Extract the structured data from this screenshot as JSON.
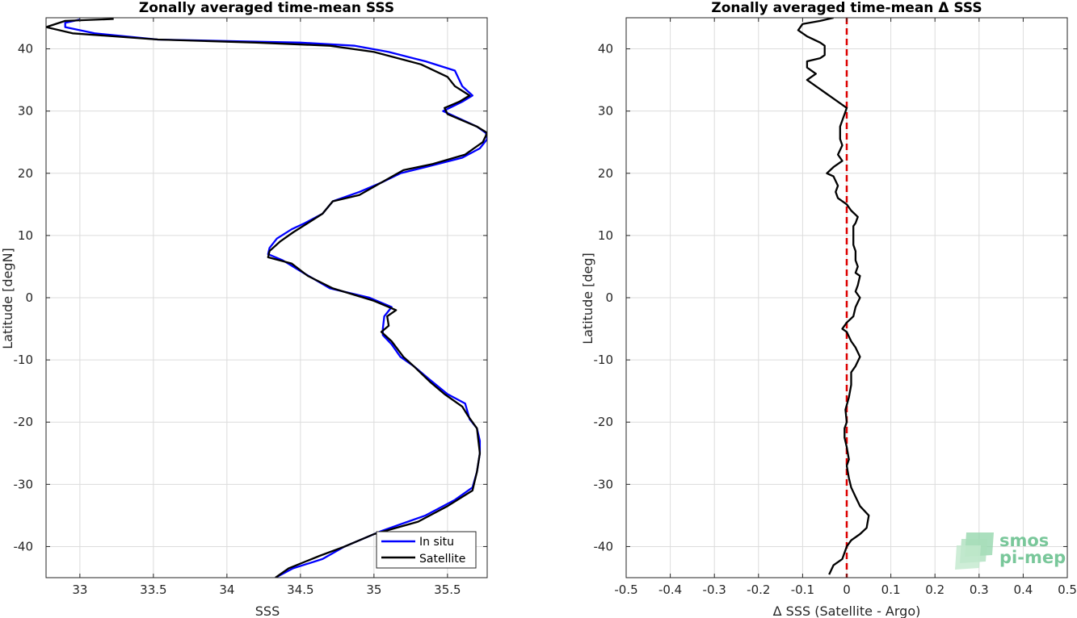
{
  "chart_data": [
    {
      "type": "line",
      "title": "Zonally averaged time-mean SSS",
      "xlabel": "SSS",
      "ylabel": "Latitude [degN]",
      "xlim": [
        32.77,
        35.77
      ],
      "ylim": [
        -45,
        45
      ],
      "xticks": [
        "33",
        "33.5",
        "34",
        "34.5",
        "35",
        "35.5"
      ],
      "xtick_values": [
        33,
        33.5,
        34,
        34.5,
        35,
        35.5
      ],
      "yticks": [
        "-40",
        "-30",
        "-20",
        "-10",
        "0",
        "10",
        "20",
        "30",
        "40"
      ],
      "ytick_values": [
        -40,
        -30,
        -20,
        -10,
        0,
        10,
        20,
        30,
        40
      ],
      "grid": true,
      "legend": "bottom-right",
      "series": [
        {
          "name": "In situ",
          "color": "#0000ff",
          "points": [
            [
              34.33,
              -45
            ],
            [
              34.45,
              -43.5
            ],
            [
              34.65,
              -42
            ],
            [
              34.8,
              -40
            ],
            [
              35.05,
              -37.5
            ],
            [
              35.35,
              -35
            ],
            [
              35.55,
              -32.5
            ],
            [
              35.67,
              -30.5
            ],
            [
              35.7,
              -28
            ],
            [
              35.72,
              -25
            ],
            [
              35.72,
              -23
            ],
            [
              35.7,
              -21
            ],
            [
              35.65,
              -19.5
            ],
            [
              35.62,
              -17
            ],
            [
              35.5,
              -15.5
            ],
            [
              35.37,
              -13
            ],
            [
              35.27,
              -11
            ],
            [
              35.18,
              -9.5
            ],
            [
              35.12,
              -7.5
            ],
            [
              35.06,
              -6
            ],
            [
              35.06,
              -5
            ],
            [
              35.07,
              -3
            ],
            [
              35.12,
              -1.5
            ],
            [
              34.97,
              0
            ],
            [
              34.7,
              1.5
            ],
            [
              34.52,
              4
            ],
            [
              34.38,
              6
            ],
            [
              34.28,
              7
            ],
            [
              34.29,
              8
            ],
            [
              34.34,
              9.5
            ],
            [
              34.44,
              11
            ],
            [
              34.53,
              12
            ],
            [
              34.65,
              13.5
            ],
            [
              34.72,
              15.5
            ],
            [
              34.9,
              17
            ],
            [
              35.05,
              18.5
            ],
            [
              35.18,
              20
            ],
            [
              35.35,
              21
            ],
            [
              35.6,
              22.5
            ],
            [
              35.72,
              24
            ],
            [
              35.77,
              25.5
            ],
            [
              35.76,
              26.5
            ],
            [
              35.7,
              27.5
            ],
            [
              35.47,
              30
            ],
            [
              35.6,
              31.5
            ],
            [
              35.67,
              32.5
            ],
            [
              35.6,
              34
            ],
            [
              35.55,
              36.5
            ],
            [
              35.35,
              38
            ],
            [
              35.1,
              39.5
            ],
            [
              34.87,
              40.5
            ],
            [
              34.5,
              41
            ],
            [
              34.1,
              41.2
            ],
            [
              33.53,
              41.5
            ],
            [
              33.1,
              42.5
            ],
            [
              32.9,
              43.5
            ],
            [
              32.9,
              44.2
            ],
            [
              33.0,
              44.7
            ]
          ]
        },
        {
          "name": "Satellite",
          "color": "#000000",
          "points": [
            [
              34.33,
              -45
            ],
            [
              34.42,
              -43.5
            ],
            [
              34.63,
              -41.5
            ],
            [
              34.8,
              -40
            ],
            [
              35.0,
              -38
            ],
            [
              35.3,
              -36
            ],
            [
              35.5,
              -33.5
            ],
            [
              35.67,
              -31
            ],
            [
              35.7,
              -28
            ],
            [
              35.72,
              -25
            ],
            [
              35.71,
              -23
            ],
            [
              35.7,
              -21
            ],
            [
              35.64,
              -19
            ],
            [
              35.6,
              -17.5
            ],
            [
              35.48,
              -15.5
            ],
            [
              35.38,
              -13.5
            ],
            [
              35.27,
              -11
            ],
            [
              35.2,
              -9.5
            ],
            [
              35.12,
              -7
            ],
            [
              35.05,
              -5.5
            ],
            [
              35.1,
              -4.5
            ],
            [
              35.09,
              -3
            ],
            [
              35.15,
              -2
            ],
            [
              35.0,
              -0.5
            ],
            [
              34.72,
              1.5
            ],
            [
              34.55,
              3.5
            ],
            [
              34.44,
              5.5
            ],
            [
              34.28,
              6.5
            ],
            [
              34.29,
              7.5
            ],
            [
              34.36,
              9
            ],
            [
              34.45,
              10.5
            ],
            [
              34.55,
              12
            ],
            [
              34.65,
              13.5
            ],
            [
              34.72,
              15.5
            ],
            [
              34.9,
              16.5
            ],
            [
              35.05,
              18.5
            ],
            [
              35.2,
              20.5
            ],
            [
              35.4,
              21.5
            ],
            [
              35.62,
              23
            ],
            [
              35.74,
              25
            ],
            [
              35.77,
              26.5
            ],
            [
              35.7,
              27.5
            ],
            [
              35.5,
              29.5
            ],
            [
              35.48,
              30.5
            ],
            [
              35.58,
              31.5
            ],
            [
              35.65,
              32.5
            ],
            [
              35.55,
              34
            ],
            [
              35.5,
              35.5
            ],
            [
              35.32,
              37.5
            ],
            [
              35.0,
              39.5
            ],
            [
              34.7,
              40.5
            ],
            [
              34.2,
              41
            ],
            [
              33.53,
              41.5
            ],
            [
              32.95,
              42.5
            ],
            [
              32.77,
              43.5
            ],
            [
              32.9,
              44.5
            ],
            [
              33.23,
              44.8
            ]
          ]
        }
      ]
    },
    {
      "type": "line",
      "title": "Zonally averaged time-mean Δ SSS",
      "xlabel": "Δ SSS (Satellite - Argo)",
      "ylabel": "Latitude [deg]",
      "xlim": [
        -0.5,
        0.5
      ],
      "ylim": [
        -45,
        45
      ],
      "xticks": [
        "-0.5",
        "-0.4",
        "-0.3",
        "-0.2",
        "-0.1",
        "0",
        "0.1",
        "0.2",
        "0.3",
        "0.4",
        "0.5"
      ],
      "xtick_values": [
        -0.5,
        -0.4,
        -0.3,
        -0.2,
        -0.1,
        0,
        0.1,
        0.2,
        0.3,
        0.4,
        0.5
      ],
      "yticks": [
        "-40",
        "-30",
        "-20",
        "-10",
        "0",
        "10",
        "20",
        "30",
        "40"
      ],
      "ytick_values": [
        -40,
        -30,
        -20,
        -10,
        0,
        10,
        20,
        30,
        40
      ],
      "grid": true,
      "zero_line_color": "#dd0000",
      "series": [
        {
          "name": "",
          "color": "#000000",
          "points": [
            [
              -0.04,
              -44.5
            ],
            [
              -0.03,
              -43
            ],
            [
              -0.01,
              -42
            ],
            [
              0.0,
              -40
            ],
            [
              0.01,
              -39
            ],
            [
              0.03,
              -38
            ],
            [
              0.045,
              -37
            ],
            [
              0.05,
              -35
            ],
            [
              0.03,
              -33.5
            ],
            [
              0.02,
              -32
            ],
            [
              0.01,
              -30.5
            ],
            [
              0.005,
              -29
            ],
            [
              0.0,
              -27
            ],
            [
              0.005,
              -26
            ],
            [
              0.0,
              -24
            ],
            [
              -0.005,
              -22.5
            ],
            [
              -0.005,
              -21
            ],
            [
              0.0,
              -20
            ],
            [
              -0.003,
              -18
            ],
            [
              0.005,
              -16
            ],
            [
              0.01,
              -14
            ],
            [
              0.01,
              -12
            ],
            [
              0.02,
              -11
            ],
            [
              0.03,
              -9.5
            ],
            [
              0.02,
              -8
            ],
            [
              0.01,
              -7
            ],
            [
              0.0,
              -5.5
            ],
            [
              -0.01,
              -5
            ],
            [
              0.0,
              -4
            ],
            [
              0.015,
              -3
            ],
            [
              0.02,
              -1.5
            ],
            [
              0.03,
              0
            ],
            [
              0.02,
              1
            ],
            [
              0.025,
              2
            ],
            [
              0.03,
              3.5
            ],
            [
              0.02,
              4
            ],
            [
              0.025,
              5
            ],
            [
              0.02,
              6
            ],
            [
              0.02,
              7.5
            ],
            [
              0.015,
              8.5
            ],
            [
              0.015,
              10
            ],
            [
              0.015,
              11.5
            ],
            [
              0.02,
              12
            ],
            [
              0.025,
              13
            ],
            [
              0.01,
              14
            ],
            [
              0.0,
              15
            ],
            [
              -0.02,
              16
            ],
            [
              -0.025,
              17
            ],
            [
              -0.02,
              18
            ],
            [
              -0.03,
              19.5
            ],
            [
              -0.045,
              20
            ],
            [
              -0.03,
              21
            ],
            [
              -0.01,
              22
            ],
            [
              -0.02,
              23
            ],
            [
              -0.01,
              24.5
            ],
            [
              -0.015,
              25.5
            ],
            [
              -0.015,
              26.5
            ],
            [
              -0.015,
              27.5
            ],
            [
              -0.01,
              28.5
            ],
            [
              -0.005,
              29.5
            ],
            [
              0.0,
              30.5
            ],
            [
              -0.03,
              32
            ],
            [
              -0.05,
              33
            ],
            [
              -0.07,
              34
            ],
            [
              -0.09,
              35
            ],
            [
              -0.07,
              36
            ],
            [
              -0.09,
              37
            ],
            [
              -0.09,
              38
            ],
            [
              -0.06,
              38.5
            ],
            [
              -0.05,
              39
            ],
            [
              -0.05,
              40.5
            ],
            [
              -0.06,
              41
            ],
            [
              -0.09,
              42
            ],
            [
              -0.11,
              43
            ],
            [
              -0.1,
              44
            ],
            [
              -0.06,
              44.5
            ],
            [
              -0.03,
              45
            ]
          ]
        }
      ]
    }
  ],
  "legend": {
    "in_situ": "In situ",
    "satellite": "Satellite"
  },
  "logo": {
    "line1": "smos",
    "line2": "pi-mep"
  }
}
